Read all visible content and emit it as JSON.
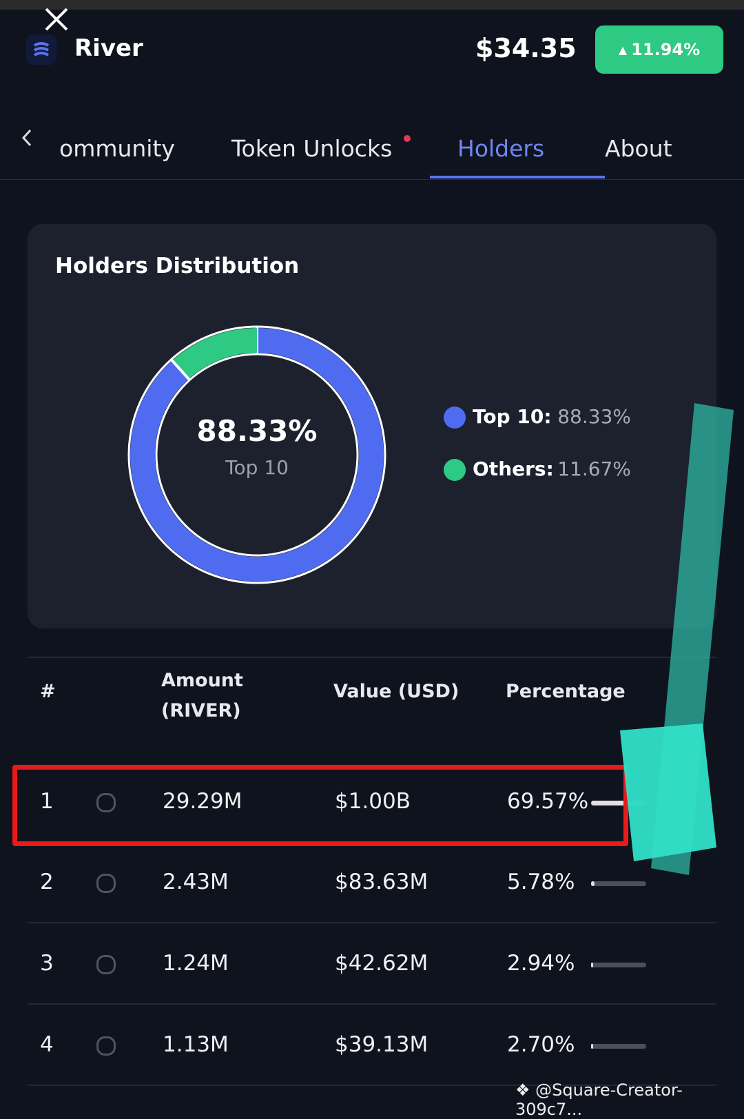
{
  "header": {
    "name": "River",
    "price": "$34.35",
    "change": "11.94%"
  },
  "tabs": [
    "ommunity",
    "Token Unlocks",
    "Holders",
    "About"
  ],
  "distribution": {
    "title": "Holders Distribution",
    "center_label": "Top 10",
    "series": [
      {
        "name": "Top 10:",
        "value": 88.33,
        "label": "88.33%",
        "color": "#4f6cf0"
      },
      {
        "name": "Others:",
        "value": 11.67,
        "label": "11.67%",
        "color": "#2ec983"
      }
    ]
  },
  "table": {
    "columns": [
      "#",
      "Amount (RIVER)",
      "Value (USD)",
      "Percentage"
    ],
    "rows": [
      [
        "1",
        "29.29M",
        "$1.00B",
        "69.57%"
      ],
      [
        "2",
        "2.43M",
        "$83.63M",
        "5.78%"
      ],
      [
        "3",
        "1.24M",
        "$42.62M",
        "2.94%"
      ],
      [
        "4",
        "1.13M",
        "$39.13M",
        "2.70%"
      ]
    ]
  },
  "watermark": "@Square-Creator-309c7..."
}
